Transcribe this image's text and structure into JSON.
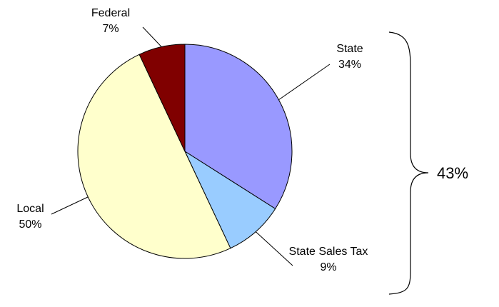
{
  "chart_data": {
    "type": "pie",
    "categories": [
      "State",
      "State Sales Tax",
      "Local",
      "Federal"
    ],
    "values": [
      34,
      9,
      50,
      7
    ],
    "value_labels": [
      "34%",
      "9%",
      "50%",
      "7%"
    ],
    "colors": [
      "#9999ff",
      "#99ccff",
      "#ffffcc",
      "#800000"
    ],
    "annotation": "43%"
  }
}
